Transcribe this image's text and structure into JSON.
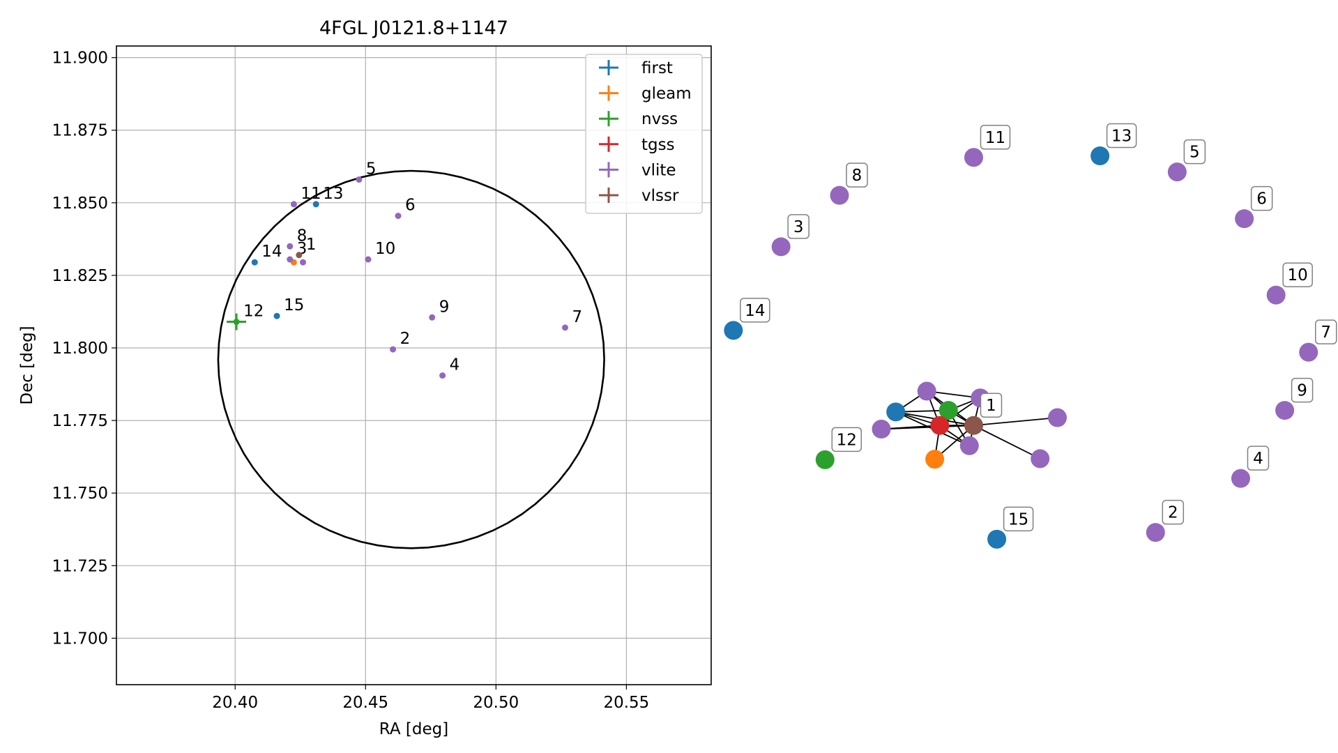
{
  "chart_data": [
    {
      "type": "scatter",
      "title": "4FGL J0121.8+1147",
      "xlabel": "RA [deg]",
      "ylabel": "Dec [deg]",
      "xlim": [
        20.3545,
        20.5825
      ],
      "ylim": [
        11.684,
        11.904
      ],
      "xticks": [
        "20.40",
        "20.45",
        "20.50",
        "20.55"
      ],
      "yticks": [
        "11.900",
        "11.875",
        "11.850",
        "11.825",
        "11.800",
        "11.775",
        "11.750",
        "11.725",
        "11.700"
      ],
      "grid": true,
      "legend_position": "top-right",
      "error_bars": true,
      "series": [
        {
          "name": "first",
          "color": "#1f77b4",
          "points": [
            {
              "label": "13",
              "x": 20.431,
              "y": 11.8495
            },
            {
              "label": "14",
              "x": 20.4075,
              "y": 11.8295
            },
            {
              "label": "15",
              "x": 20.416,
              "y": 11.811
            }
          ]
        },
        {
          "name": "gleam",
          "color": "#ff7f0e",
          "points": [
            {
              "label": "",
              "x": 20.4225,
              "y": 11.8295
            }
          ]
        },
        {
          "name": "nvss",
          "color": "#2ca02c",
          "points": [
            {
              "label": "12",
              "x": 20.4005,
              "y": 11.809
            }
          ]
        },
        {
          "name": "tgss",
          "color": "#d62728",
          "points": []
        },
        {
          "name": "vlite",
          "color": "#9467bd",
          "points": [
            {
              "label": "5",
              "x": 20.4475,
              "y": 11.858
            },
            {
              "label": "11",
              "x": 20.4225,
              "y": 11.8495
            },
            {
              "label": "6",
              "x": 20.4625,
              "y": 11.8455
            },
            {
              "label": "8",
              "x": 20.421,
              "y": 11.835
            },
            {
              "label": "3",
              "x": 20.421,
              "y": 11.8305
            },
            {
              "label": "",
              "x": 20.426,
              "y": 11.8295
            },
            {
              "label": "10",
              "x": 20.451,
              "y": 11.8305
            },
            {
              "label": "9",
              "x": 20.4755,
              "y": 11.8105
            },
            {
              "label": "7",
              "x": 20.5265,
              "y": 11.807
            },
            {
              "label": "2",
              "x": 20.4605,
              "y": 11.7995
            },
            {
              "label": "4",
              "x": 20.4795,
              "y": 11.7905
            }
          ]
        },
        {
          "name": "vlssr",
          "color": "#8c564b",
          "points": [
            {
              "label": "1",
              "x": 20.4245,
              "y": 11.832
            }
          ]
        }
      ],
      "ellipse": {
        "center_x": 20.4675,
        "center_y": 11.796,
        "semi_axis_ra": 0.074,
        "semi_axis_dec": 0.065,
        "color": "#000000"
      }
    },
    {
      "type": "network",
      "nodes": [
        {
          "id": "n-first-a",
          "label": "",
          "color": "#1f77b4",
          "x": 0.135,
          "y": 0.415
        },
        {
          "id": "n-vlite-a",
          "label": "",
          "color": "#9467bd",
          "x": 0.178,
          "y": 0.455
        },
        {
          "id": "n-nvss",
          "label": "",
          "color": "#2ca02c",
          "x": 0.208,
          "y": 0.418
        },
        {
          "id": "n-tgss",
          "label": "",
          "color": "#d62728",
          "x": 0.196,
          "y": 0.389
        },
        {
          "id": "n-vlite-b",
          "label": "",
          "color": "#9467bd",
          "x": 0.252,
          "y": 0.442
        },
        {
          "id": "n-vlite-c",
          "label": "",
          "color": "#9467bd",
          "x": 0.115,
          "y": 0.382
        },
        {
          "id": "n-vlssr",
          "label": "1",
          "color": "#8c564b",
          "x": 0.243,
          "y": 0.389
        },
        {
          "id": "n-vlite-d",
          "label": "",
          "color": "#9467bd",
          "x": 0.359,
          "y": 0.404
        },
        {
          "id": "n-vlite-e",
          "label": "",
          "color": "#9467bd",
          "x": 0.237,
          "y": 0.35
        },
        {
          "id": "n-gleam",
          "label": "",
          "color": "#ff7f0e",
          "x": 0.189,
          "y": 0.324
        },
        {
          "id": "n-vlite-f",
          "label": "",
          "color": "#9467bd",
          "x": 0.335,
          "y": 0.325
        },
        {
          "id": "n-3",
          "label": "3",
          "color": "#9467bd",
          "x": -0.024,
          "y": 0.733
        },
        {
          "id": "n-5",
          "label": "5",
          "color": "#9467bd",
          "x": 0.525,
          "y": 0.877
        },
        {
          "id": "n-6",
          "label": "6",
          "color": "#9467bd",
          "x": 0.618,
          "y": 0.787
        },
        {
          "id": "n-7",
          "label": "7",
          "color": "#9467bd",
          "x": 0.707,
          "y": 0.53
        },
        {
          "id": "n-8",
          "label": "8",
          "color": "#9467bd",
          "x": 0.057,
          "y": 0.832
        },
        {
          "id": "n-9",
          "label": "9",
          "color": "#9467bd",
          "x": 0.674,
          "y": 0.418
        },
        {
          "id": "n-10",
          "label": "10",
          "color": "#9467bd",
          "x": 0.662,
          "y": 0.64
        },
        {
          "id": "n-11",
          "label": "11",
          "color": "#9467bd",
          "x": 0.243,
          "y": 0.905
        },
        {
          "id": "n-2",
          "label": "2",
          "color": "#9467bd",
          "x": 0.495,
          "y": 0.183
        },
        {
          "id": "n-4",
          "label": "4",
          "color": "#9467bd",
          "x": 0.613,
          "y": 0.287
        },
        {
          "id": "n-13",
          "label": "13",
          "color": "#1f77b4",
          "x": 0.418,
          "y": 0.908
        },
        {
          "id": "n-14",
          "label": "14",
          "color": "#1f77b4",
          "x": -0.09,
          "y": 0.572
        },
        {
          "id": "n-15",
          "label": "15",
          "color": "#1f77b4",
          "x": 0.275,
          "y": 0.17
        },
        {
          "id": "n-12",
          "label": "12",
          "color": "#2ca02c",
          "x": 0.037,
          "y": 0.323
        }
      ],
      "edges": [
        [
          "n-vlssr",
          "n-first-a"
        ],
        [
          "n-vlssr",
          "n-vlite-a"
        ],
        [
          "n-vlssr",
          "n-nvss"
        ],
        [
          "n-vlssr",
          "n-tgss"
        ],
        [
          "n-vlssr",
          "n-vlite-b"
        ],
        [
          "n-vlssr",
          "n-vlite-c"
        ],
        [
          "n-vlssr",
          "n-vlite-d"
        ],
        [
          "n-vlssr",
          "n-vlite-e"
        ],
        [
          "n-vlssr",
          "n-gleam"
        ],
        [
          "n-vlssr",
          "n-vlite-f"
        ],
        [
          "n-tgss",
          "n-first-a"
        ],
        [
          "n-tgss",
          "n-vlite-a"
        ],
        [
          "n-tgss",
          "n-nvss"
        ],
        [
          "n-tgss",
          "n-vlite-b"
        ],
        [
          "n-tgss",
          "n-vlite-c"
        ],
        [
          "n-tgss",
          "n-vlite-e"
        ],
        [
          "n-tgss",
          "n-gleam"
        ],
        [
          "n-nvss",
          "n-first-a"
        ],
        [
          "n-nvss",
          "n-vlite-a"
        ],
        [
          "n-nvss",
          "n-vlite-b"
        ],
        [
          "n-nvss",
          "n-vlite-e"
        ],
        [
          "n-first-a",
          "n-vlite-a"
        ],
        [
          "n-first-a",
          "n-vlite-e"
        ],
        [
          "n-vlite-a",
          "n-vlite-b"
        ]
      ]
    }
  ]
}
